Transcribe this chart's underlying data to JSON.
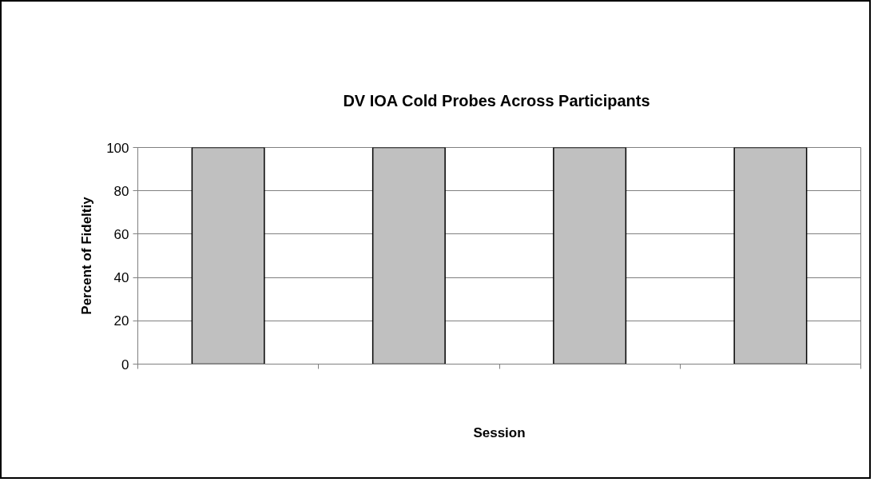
{
  "chart_data": {
    "type": "bar",
    "title": "DV IOA  Cold Probes Across Participants",
    "xlabel": "Session",
    "ylabel": "Percent of Fideltiy",
    "categories": [
      null,
      null,
      null,
      null
    ],
    "series": [
      {
        "color": "#c0c0c0",
        "values": [
          100,
          100,
          100,
          100
        ]
      }
    ],
    "ylim": [
      0,
      100
    ],
    "yticks": [
      0,
      20,
      40,
      60,
      80,
      100
    ],
    "grid": "y"
  }
}
